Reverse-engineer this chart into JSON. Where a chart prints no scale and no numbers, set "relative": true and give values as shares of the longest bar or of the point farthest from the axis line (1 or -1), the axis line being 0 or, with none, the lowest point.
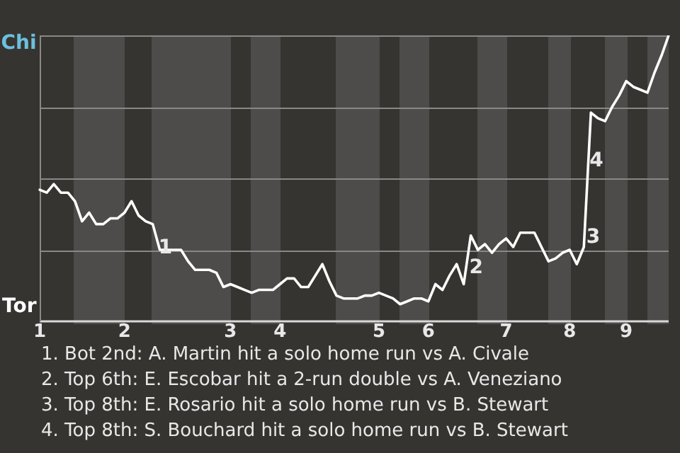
{
  "chart_data": {
    "type": "line",
    "relative": true,
    "categories": [
      "1",
      null,
      null,
      null,
      null,
      null,
      null,
      null,
      null,
      null,
      null,
      null,
      "2",
      null,
      null,
      null,
      null,
      null,
      null,
      null,
      null,
      null,
      null,
      null,
      null,
      null,
      null,
      "3",
      null,
      null,
      null,
      null,
      null,
      null,
      "4",
      null,
      null,
      null,
      null,
      null,
      null,
      null,
      null,
      null,
      null,
      null,
      null,
      null,
      "5",
      null,
      null,
      null,
      null,
      null,
      null,
      "6",
      null,
      null,
      null,
      null,
      null,
      null,
      null,
      null,
      null,
      null,
      "7",
      null,
      null,
      null,
      null,
      null,
      null,
      null,
      null,
      "8",
      null,
      null,
      null,
      null,
      null,
      null,
      null,
      "9",
      null,
      null,
      null,
      null,
      null,
      null
    ],
    "series": [
      {
        "values": [
          0.46,
          0.45,
          0.48,
          0.45,
          0.45,
          0.42,
          0.35,
          0.38,
          0.34,
          0.34,
          0.36,
          0.36,
          0.38,
          0.42,
          0.37,
          0.35,
          0.34,
          0.25,
          0.25,
          0.25,
          0.25,
          0.21,
          0.18,
          0.18,
          0.18,
          0.17,
          0.12,
          0.13,
          0.12,
          0.11,
          0.1,
          0.11,
          0.11,
          0.11,
          0.13,
          0.15,
          0.15,
          0.12,
          0.12,
          0.16,
          0.2,
          0.14,
          0.09,
          0.08,
          0.08,
          0.08,
          0.09,
          0.09,
          0.1,
          0.09,
          0.08,
          0.06,
          0.07,
          0.08,
          0.08,
          0.07,
          0.13,
          0.11,
          0.16,
          0.2,
          0.13,
          0.3,
          0.25,
          0.27,
          0.24,
          0.27,
          0.29,
          0.26,
          0.31,
          0.31,
          0.31,
          0.26,
          0.21,
          0.22,
          0.24,
          0.25,
          0.2,
          0.26,
          0.73,
          0.71,
          0.7,
          0.75,
          0.79,
          0.84,
          0.82,
          0.81,
          0.8,
          0.87,
          0.93,
          1.0
        ],
        "color": "#ffffff"
      }
    ],
    "grid": "y",
    "legend": false,
    "marker": "none",
    "line_style": "solid",
    "annotations": [
      "Chi",
      "Tor",
      "1",
      "2",
      "3",
      "4",
      "1. Bot 2nd: A. Martin hit a solo home run vs A. Civale",
      "2. Top 6th: E. Escobar hit a 2-run double vs A. Veneziano",
      "3. Top 8th: E. Rosario hit a solo home run vs B. Stewart",
      "4. Top 8th: S. Bouchard hit a solo home run vs B. Stewart"
    ]
  }
}
